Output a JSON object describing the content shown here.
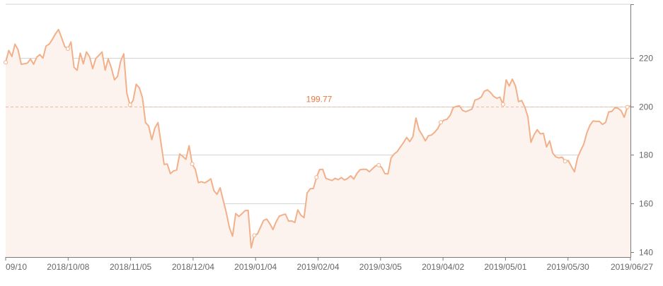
{
  "chart_data": {
    "type": "area",
    "title": "",
    "xlabel": "",
    "ylabel": "",
    "ylim": [
      138,
      242
    ],
    "y_ticks": [
      140,
      160,
      180,
      200,
      220
    ],
    "x_tick_labels": [
      "09/10",
      "2018/10/08",
      "2018/11/05",
      "2018/12/04",
      "2019/01/04",
      "2019/02/04",
      "2019/03/05",
      "2019/04/02",
      "2019/05/01",
      "2019/05/30",
      "2019/06/27"
    ],
    "reference_line": {
      "value": 199.77,
      "label": "199.77"
    },
    "series": [
      {
        "values": [
          218.1,
          223,
          220.5,
          225.6,
          223.2,
          217.3,
          217.5,
          217.8,
          219.5,
          217.3,
          220.2,
          221.3,
          219.8,
          224.8,
          225.6,
          227.5,
          229.8,
          231.6,
          228.2,
          224.6,
          223.7,
          226.5,
          216.1,
          214.8,
          221.9,
          217.5,
          222.4,
          220.4,
          215.5,
          219.7,
          221,
          222.4,
          214.9,
          219.5,
          215.8,
          210.9,
          212.3,
          218.6,
          221.6,
          205.3,
          200.6,
          202.4,
          209.1,
          207.6,
          203.6,
          193.3,
          191.9,
          186.3,
          191.1,
          193.3,
          184.6,
          176.1,
          176.3,
          172.3,
          173.4,
          173.8,
          180.4,
          179.4,
          178.2,
          183.8,
          176.3,
          174.1,
          168.6,
          169,
          168.5,
          169.2,
          170.2,
          165.3,
          163.8,
          166.5,
          161.3,
          156.2,
          150,
          146.6,
          155.9,
          154.7,
          155.8,
          157.1,
          157.2,
          141.8,
          146.9,
          147.5,
          150.3,
          153.1,
          153.6,
          151.7,
          149.3,
          152.5,
          154.8,
          155.3,
          155.7,
          152.8,
          152.9,
          152.2,
          157.4,
          155.2,
          154.2,
          164.4,
          166.1,
          166.2,
          170.8,
          174,
          174.1,
          170.4,
          169.9,
          169.5,
          170.4,
          169.8,
          170.7,
          169.7,
          170.3,
          171.4,
          170.1,
          172.4,
          173.9,
          174.1,
          174.1,
          173.1,
          174.3,
          175.5,
          175.8,
          174.8,
          172.3,
          172.2,
          178.8,
          180.4,
          181.4,
          183.3,
          185.1,
          187.2,
          185.5,
          187.5,
          195.2,
          190.3,
          188.2,
          185.8,
          187.9,
          188.2,
          189.3,
          190.8,
          193.4,
          194.3,
          194.7,
          196.3,
          199.5,
          200,
          200.2,
          198.3,
          197.8,
          198.3,
          198.9,
          202.6,
          203,
          203.8,
          206.2,
          206.8,
          205.7,
          204.1,
          203.3,
          203.8,
          200.8,
          210.9,
          208.4,
          211.2,
          208.4,
          201.9,
          202.4,
          199.8,
          195.8,
          185.2,
          188.3,
          190.4,
          188.7,
          188.9,
          183.3,
          185.8,
          180.7,
          179.2,
          178.8,
          179.1,
          177.4,
          177.7,
          175.3,
          173.1,
          178.9,
          181.9,
          184.5,
          189.2,
          192.3,
          194,
          193.8,
          193.8,
          192.6,
          193.4,
          197.7,
          197.9,
          199.4,
          199.2,
          198.2,
          195.5,
          199.7,
          200.2
        ]
      }
    ],
    "colors": {
      "line": "#f2b08a",
      "fill": "#fdf3ee",
      "reference_line": "#f3b89a",
      "reference_label": "#e57940",
      "grid": "#d4d4d4",
      "axis": "#7a7a7a",
      "tick_text": "#666666",
      "marker": "#ffffff"
    },
    "grid": true,
    "y_axis_position": "right"
  }
}
